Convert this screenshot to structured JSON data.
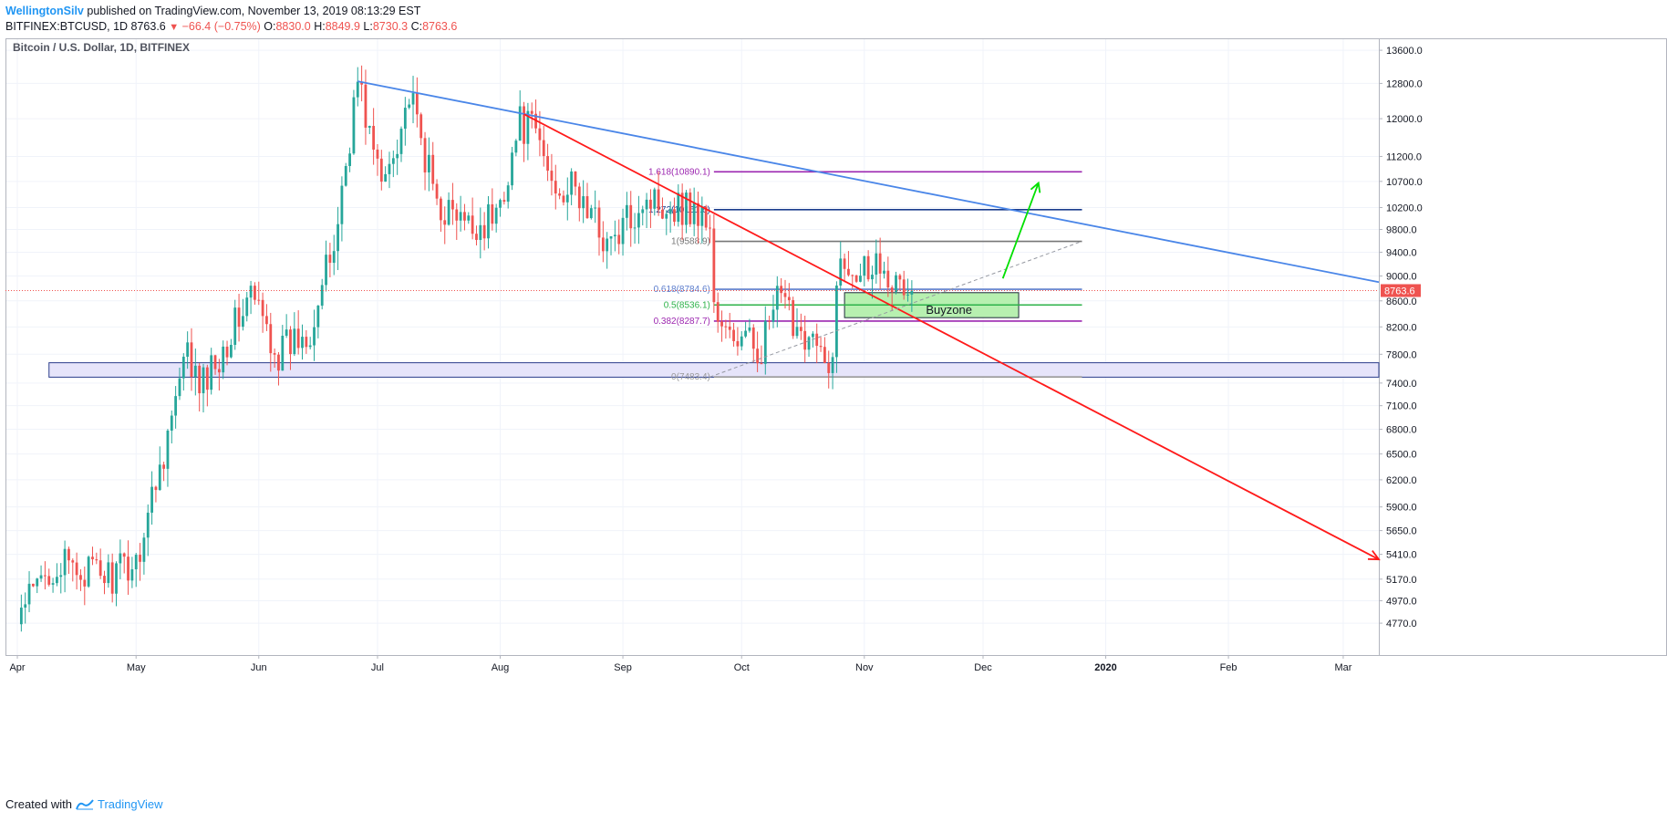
{
  "header": {
    "author": "WellingtonSilv",
    "published_text": "published on TradingView.com, November 13, 2019 08:13:29 EST",
    "symbol": "BITFINEX:BTCUSD, 1D",
    "last": "8763.6",
    "change": "−66.4 (−0.75%)",
    "ohlc": [
      {
        "key": "O:",
        "value": "8830.0"
      },
      {
        "key": "H:",
        "value": "8849.9"
      },
      {
        "key": "L:",
        "value": "8730.3"
      },
      {
        "key": "C:",
        "value": "8763.6"
      }
    ]
  },
  "footer": {
    "created_with": "Created with",
    "brand": "TradingView"
  },
  "colors": {
    "up": "#26a69a",
    "down": "#ef5350",
    "blue_trend": "#4a86e8",
    "red_trend": "#ff1a1a",
    "green_arrow": "#00e000",
    "fib_1618": "#9c27b0",
    "fib_1272": "#1a3c8c",
    "fib_1": "#777777",
    "fib_0618": "#5b7ccc",
    "fib_05": "#2db24a",
    "fib_0382": "#9c27b0",
    "fib_0": "#999999",
    "buyzone_fill": "#b7f0b0",
    "support_fill": "#e6e4fa",
    "support_stroke": "#2c3e8c",
    "price_line": "#ef5350"
  },
  "chart_data": {
    "type": "candlestick",
    "title": "Bitcoin / U.S. Dollar, 1D, BITFINEX",
    "x_range": [
      "2019-03-29",
      "2020-03-10"
    ],
    "y_range": [
      4500,
      13900
    ],
    "y_scale": "log",
    "grid": true,
    "x_ticks": [
      {
        "label": "Apr",
        "date": "2019-04-01"
      },
      {
        "label": "May",
        "date": "2019-05-01"
      },
      {
        "label": "Jun",
        "date": "2019-06-01"
      },
      {
        "label": "Jul",
        "date": "2019-07-01"
      },
      {
        "label": "Aug",
        "date": "2019-08-01"
      },
      {
        "label": "Sep",
        "date": "2019-09-01"
      },
      {
        "label": "Oct",
        "date": "2019-10-01"
      },
      {
        "label": "Nov",
        "date": "2019-11-01"
      },
      {
        "label": "Dec",
        "date": "2019-12-01"
      },
      {
        "label": "2020",
        "date": "2020-01-01"
      },
      {
        "label": "Feb",
        "date": "2020-02-01"
      },
      {
        "label": "Mar",
        "date": "2020-03-01"
      }
    ],
    "y_ticks": [
      "13600.0",
      "12800.0",
      "12000.0",
      "11200.0",
      "10700.0",
      "10200.0",
      "9800.0",
      "9400.0",
      "9000.0",
      "8600.0",
      "8200.0",
      "7800.0",
      "7400.0",
      "7100.0",
      "6800.0",
      "6500.0",
      "6200.0",
      "5900.0",
      "5650.0",
      "5410.0",
      "5170.0",
      "4970.0",
      "4770.0"
    ],
    "last_price": {
      "value": 8763.6,
      "label": "8763.6"
    },
    "key_points": [
      {
        "date": "2019-04-02",
        "close": 4880
      },
      {
        "date": "2019-04-10",
        "close": 5300
      },
      {
        "date": "2019-04-25",
        "close": 5200
      },
      {
        "date": "2019-05-01",
        "close": 5350
      },
      {
        "date": "2019-05-14",
        "close": 7800
      },
      {
        "date": "2019-05-17",
        "close": 7300
      },
      {
        "date": "2019-05-30",
        "close": 8700
      },
      {
        "date": "2019-06-06",
        "close": 7800
      },
      {
        "date": "2019-06-14",
        "close": 8200
      },
      {
        "date": "2019-06-20",
        "close": 9500
      },
      {
        "date": "2019-06-26",
        "close": 12900
      },
      {
        "date": "2019-07-02",
        "close": 10600
      },
      {
        "date": "2019-07-09",
        "close": 12500
      },
      {
        "date": "2019-07-16",
        "close": 10300
      },
      {
        "date": "2019-07-24",
        "close": 9800
      },
      {
        "date": "2019-07-31",
        "close": 10050
      },
      {
        "date": "2019-08-06",
        "close": 11900
      },
      {
        "date": "2019-08-10",
        "close": 11700
      },
      {
        "date": "2019-08-14",
        "close": 10700
      },
      {
        "date": "2019-08-20",
        "close": 10500
      },
      {
        "date": "2019-08-29",
        "close": 9500
      },
      {
        "date": "2019-09-06",
        "close": 10400
      },
      {
        "date": "2019-09-18",
        "close": 10200
      },
      {
        "date": "2019-09-23",
        "close": 9900
      },
      {
        "date": "2019-09-24",
        "close": 8550
      },
      {
        "date": "2019-09-26",
        "close": 8100
      },
      {
        "date": "2019-10-06",
        "close": 7900
      },
      {
        "date": "2019-10-10",
        "close": 8600
      },
      {
        "date": "2019-10-19",
        "close": 8000
      },
      {
        "date": "2019-10-23",
        "close": 7450
      },
      {
        "date": "2019-10-25",
        "close": 8650
      },
      {
        "date": "2019-10-26",
        "close": 9250
      },
      {
        "date": "2019-11-01",
        "close": 9200
      },
      {
        "date": "2019-11-06",
        "close": 9300
      },
      {
        "date": "2019-11-09",
        "close": 8800
      },
      {
        "date": "2019-11-13",
        "close": 8763.6
      }
    ],
    "fib_levels": [
      {
        "label": "1.618(10890.1)",
        "ratio": "1.618",
        "value": 10890.1,
        "color_key": "fib_1618"
      },
      {
        "label": "1.272(10161.6)",
        "ratio": "1.272",
        "value": 10161.6,
        "color_key": "fib_1272"
      },
      {
        "label": "1(9588.9)",
        "ratio": "1",
        "value": 9588.9,
        "color_key": "fib_1"
      },
      {
        "label": "0.618(8784.6)",
        "ratio": "0.618",
        "value": 8784.6,
        "color_key": "fib_0618"
      },
      {
        "label": "0.5(8536.1)",
        "ratio": "0.5",
        "value": 8536.1,
        "color_key": "fib_05"
      },
      {
        "label": "0.382(8287.7)",
        "ratio": "0.382",
        "value": 8287.7,
        "color_key": "fib_0382"
      },
      {
        "label": "0(7483.4)",
        "ratio": "0",
        "value": 7483.4,
        "color_key": "fib_0"
      }
    ],
    "fib_span": {
      "start": "2019-09-24",
      "end": "2019-12-26"
    },
    "annotations": {
      "buyzone": {
        "label": "Buyzone",
        "start": "2019-10-27",
        "end": "2019-12-10",
        "top": 8730,
        "bottom": 8340
      },
      "support_band": {
        "start": "2019-04-09",
        "end": "2020-03-10",
        "top": 7680,
        "bottom": 7480
      },
      "blue_trendline": {
        "start": {
          "date": "2019-06-26",
          "value": 12850
        },
        "end": {
          "date": "2020-03-10",
          "value": 8900
        }
      },
      "red_trendline": {
        "start": {
          "date": "2019-08-07",
          "value": 12100
        },
        "end": {
          "date": "2020-03-10",
          "value": 5360
        }
      },
      "green_arrow": {
        "start": {
          "date": "2019-12-06",
          "value": 8960
        },
        "end": {
          "date": "2019-12-15",
          "value": 10670
        }
      },
      "dashed_trendline": {
        "start": {
          "date": "2019-09-23",
          "value": 7483
        },
        "end": {
          "date": "2019-12-26",
          "value": 9590
        }
      }
    }
  }
}
